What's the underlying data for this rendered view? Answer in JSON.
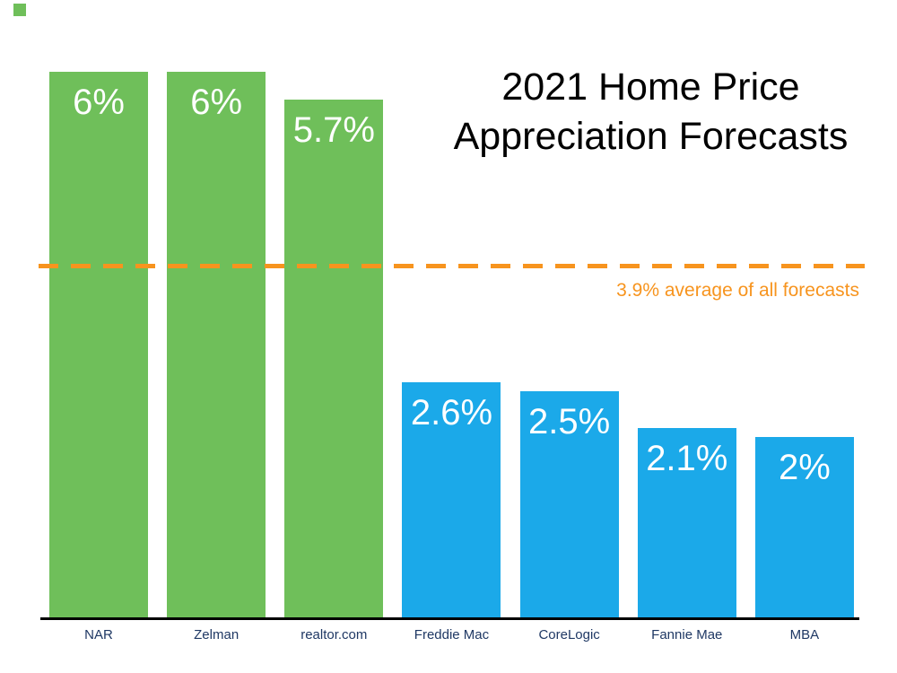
{
  "title": {
    "line1": "2021 Home Price",
    "line2": "Appreciation Forecasts"
  },
  "chart_data": {
    "type": "bar",
    "title": "2021 Home Price Appreciation Forecasts",
    "categories": [
      "NAR",
      "Zelman",
      "realtor.com",
      "Freddie Mac",
      "CoreLogic",
      "Fannie Mae",
      "MBA"
    ],
    "values": [
      6,
      6,
      5.7,
      2.6,
      2.5,
      2.1,
      2
    ],
    "value_labels": [
      "6%",
      "6%",
      "5.7%",
      "2.6%",
      "2.5%",
      "2.1%",
      "2%"
    ],
    "bar_colors": [
      "#6FBF5A",
      "#6FBF5A",
      "#6FBF5A",
      "#1BA9E9",
      "#1BA9E9",
      "#1BA9E9",
      "#1BA9E9"
    ],
    "xlabel": "",
    "ylabel": "",
    "ylim": [
      0,
      6
    ],
    "grid": false,
    "legend": false,
    "average_line": {
      "value": 3.9,
      "label": "3.9% average of all forecasts",
      "color": "#F7941E",
      "style": "dashed"
    }
  },
  "colors": {
    "green": "#6FBF5A",
    "blue": "#1BA9E9",
    "orange": "#F7941E",
    "category_text": "#1F3864",
    "value_text": "#FFFFFF",
    "baseline": "#000000",
    "background": "#FFFFFF"
  }
}
